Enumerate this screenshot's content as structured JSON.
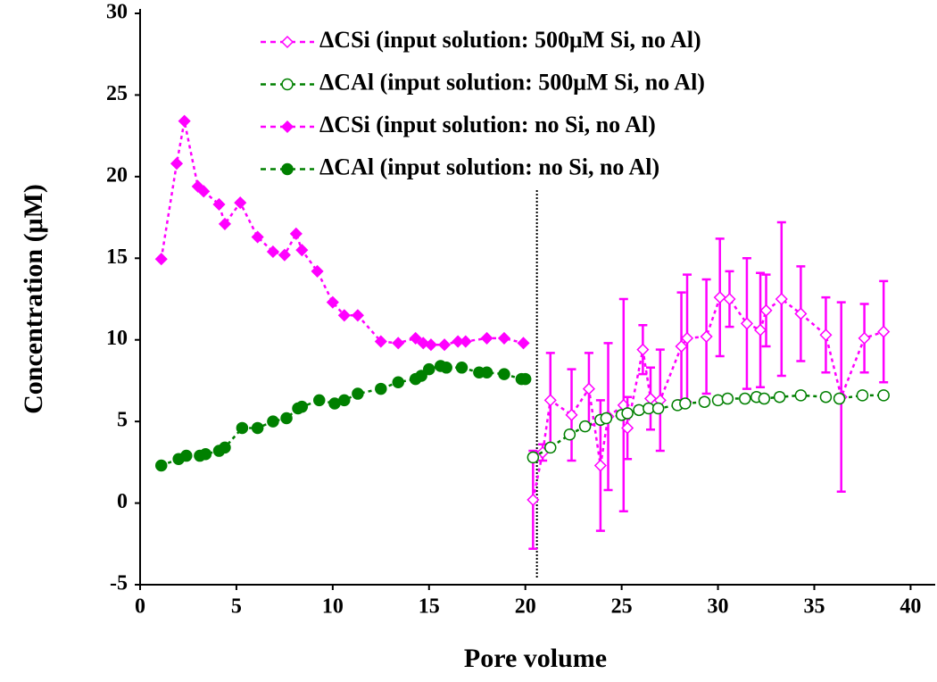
{
  "chart_data": {
    "type": "scatter",
    "x_label": "Pore volume",
    "y_label": "Concentration (μM)",
    "xlim": [
      0,
      41
    ],
    "ylim": [
      -5,
      30
    ],
    "xticks": [
      0,
      5,
      10,
      15,
      20,
      25,
      30,
      35,
      40
    ],
    "yticks": [
      -5,
      0,
      5,
      10,
      15,
      20,
      25,
      30
    ],
    "vline_x": 20.6,
    "legend": "top",
    "series": [
      {
        "name": "ΔCSi (input solution: 500μM Si, no Al)",
        "color": "#ff00ff",
        "marker": "diamond",
        "filled": false,
        "x": [
          20.4,
          20.9,
          21.3,
          22.4,
          23.3,
          23.9,
          24.3,
          25.1,
          25.3,
          26.1,
          26.5,
          27.0,
          28.1,
          28.4,
          29.4,
          30.1,
          30.6,
          31.5,
          32.2,
          32.5,
          33.3,
          34.3,
          35.6,
          36.4,
          37.6,
          38.6
        ],
        "values": [
          0.2,
          3.1,
          6.3,
          5.4,
          7.0,
          2.3,
          5.3,
          6.0,
          4.6,
          9.4,
          6.4,
          6.3,
          9.6,
          10.1,
          10.2,
          12.6,
          12.5,
          11.0,
          10.6,
          11.8,
          12.5,
          11.6,
          10.3,
          6.5,
          10.1,
          10.5
        ],
        "errors": [
          3.0,
          0.5,
          2.9,
          2.8,
          2.2,
          4.0,
          4.5,
          6.5,
          1.9,
          1.5,
          1.9,
          3.1,
          3.3,
          3.9,
          3.5,
          3.6,
          1.7,
          4.0,
          3.5,
          2.2,
          4.7,
          2.9,
          2.3,
          5.8,
          2.1,
          3.1
        ]
      },
      {
        "name": "ΔCAl (input solution: 500μM Si, no Al)",
        "color": "#008000",
        "marker": "circle",
        "filled": false,
        "x": [
          20.4,
          21.3,
          22.3,
          23.1,
          23.9,
          24.2,
          25.0,
          25.3,
          25.9,
          26.4,
          26.9,
          27.9,
          28.3,
          29.3,
          30.0,
          30.5,
          31.4,
          32.0,
          32.4,
          33.2,
          34.3,
          35.6,
          36.3,
          37.5,
          38.6
        ],
        "values": [
          2.8,
          3.4,
          4.2,
          4.7,
          5.1,
          5.2,
          5.4,
          5.5,
          5.7,
          5.8,
          5.8,
          6.0,
          6.1,
          6.2,
          6.3,
          6.4,
          6.4,
          6.5,
          6.4,
          6.5,
          6.6,
          6.5,
          6.4,
          6.6,
          6.6
        ],
        "errors": [
          0.2,
          0.2,
          0.2,
          0.2,
          0.2,
          0.2,
          0.2,
          0.2,
          0.2,
          0.2,
          0.2,
          0.2,
          0.2,
          0.2,
          0.2,
          0.2,
          0.2,
          0.2,
          0.2,
          0.2,
          0.2,
          0.2,
          0.2,
          0.2,
          0.2
        ]
      },
      {
        "name": "ΔCSi (input solution: no Si, no Al)",
        "color": "#ff00ff",
        "marker": "diamond",
        "filled": true,
        "x": [
          1.1,
          1.9,
          2.3,
          3.0,
          3.3,
          4.1,
          4.4,
          5.2,
          6.1,
          6.9,
          7.5,
          8.1,
          8.4,
          9.2,
          10.0,
          10.6,
          11.3,
          12.5,
          13.4,
          14.3,
          14.7,
          15.1,
          15.8,
          16.5,
          16.9,
          18.0,
          18.9,
          19.9
        ],
        "values": [
          14.95,
          20.8,
          23.4,
          19.4,
          19.1,
          18.3,
          17.1,
          18.4,
          16.3,
          15.4,
          15.2,
          16.5,
          15.5,
          14.2,
          12.3,
          11.5,
          11.5,
          9.9,
          9.8,
          10.1,
          9.8,
          9.7,
          9.7,
          9.9,
          9.9,
          10.1,
          10.1,
          9.8
        ]
      },
      {
        "name": "ΔCAl (input solution: no Si, no Al)",
        "color": "#008000",
        "marker": "circle",
        "filled": true,
        "x": [
          1.1,
          2.0,
          2.4,
          3.1,
          3.4,
          4.1,
          4.4,
          5.3,
          6.1,
          6.9,
          7.6,
          8.2,
          8.4,
          9.3,
          10.1,
          10.6,
          11.3,
          12.5,
          13.4,
          14.3,
          14.6,
          15.0,
          15.6,
          15.9,
          16.7,
          17.6,
          18.0,
          18.9,
          19.8,
          20.0
        ],
        "values": [
          2.3,
          2.7,
          2.9,
          2.9,
          3.0,
          3.2,
          3.4,
          4.6,
          4.6,
          5.0,
          5.2,
          5.8,
          5.9,
          6.3,
          6.1,
          6.3,
          6.7,
          7.0,
          7.4,
          7.6,
          7.8,
          8.2,
          8.4,
          8.3,
          8.3,
          8.0,
          8.0,
          7.9,
          7.6,
          7.6
        ]
      }
    ]
  }
}
